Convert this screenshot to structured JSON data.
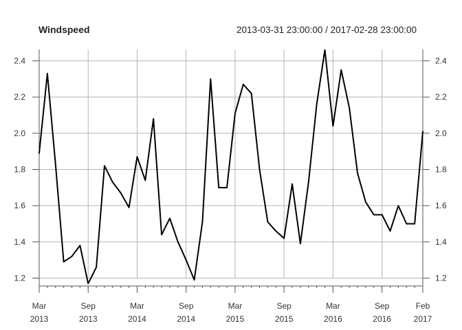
{
  "chart_data": {
    "type": "line",
    "title": "Windspeed",
    "date_range": "2013-03-31 23:00:00 / 2017-02-28 23:00:00",
    "ylim": [
      1.12,
      2.46
    ],
    "yticks": [
      1.2,
      1.4,
      1.6,
      1.8,
      2.0,
      2.2,
      2.4
    ],
    "ytick_labels": [
      "1.2",
      "1.4",
      "1.6",
      "1.8",
      "2.0",
      "2.2",
      "2.4"
    ],
    "xticks": [
      {
        "month": "Mar",
        "year": "2013",
        "date": "2013-03"
      },
      {
        "month": "Sep",
        "year": "2013",
        "date": "2013-09"
      },
      {
        "month": "Mar",
        "year": "2014",
        "date": "2014-03"
      },
      {
        "month": "Sep",
        "year": "2014",
        "date": "2014-09"
      },
      {
        "month": "Mar",
        "year": "2015",
        "date": "2015-03"
      },
      {
        "month": "Sep",
        "year": "2015",
        "date": "2015-09"
      },
      {
        "month": "Mar",
        "year": "2016",
        "date": "2016-03"
      },
      {
        "month": "Sep",
        "year": "2016",
        "date": "2016-09"
      },
      {
        "month": "Feb",
        "year": "2017",
        "date": "2017-02"
      }
    ],
    "grid": true,
    "series": [
      {
        "x": [
          "2013-03",
          "2013-04",
          "2013-05",
          "2013-06",
          "2013-07",
          "2013-08",
          "2013-09",
          "2013-10",
          "2013-11",
          "2013-12",
          "2014-01",
          "2014-02",
          "2014-03",
          "2014-04",
          "2014-05",
          "2014-06",
          "2014-07",
          "2014-08",
          "2014-09",
          "2014-10",
          "2014-11",
          "2014-12",
          "2015-01",
          "2015-02",
          "2015-03",
          "2015-04",
          "2015-05",
          "2015-06",
          "2015-07",
          "2015-08",
          "2015-09",
          "2015-10",
          "2015-11",
          "2015-12",
          "2016-01",
          "2016-02",
          "2016-03",
          "2016-04",
          "2016-05",
          "2016-06",
          "2016-07",
          "2016-08",
          "2016-09",
          "2016-10",
          "2016-11",
          "2016-12",
          "2017-01",
          "2017-02"
        ],
        "values": [
          1.89,
          2.33,
          1.83,
          1.29,
          1.32,
          1.38,
          1.17,
          1.26,
          1.82,
          1.73,
          1.67,
          1.59,
          1.87,
          1.74,
          2.08,
          1.44,
          1.53,
          1.4,
          1.3,
          1.19,
          1.51,
          2.3,
          1.7,
          1.7,
          2.11,
          2.27,
          2.22,
          1.8,
          1.51,
          1.46,
          1.42,
          1.72,
          1.39,
          1.73,
          2.16,
          2.46,
          2.04,
          2.35,
          2.14,
          1.78,
          1.62,
          1.55,
          1.55,
          1.46,
          1.6,
          1.5,
          1.5,
          2.01
        ],
        "color": "#000000"
      }
    ]
  }
}
